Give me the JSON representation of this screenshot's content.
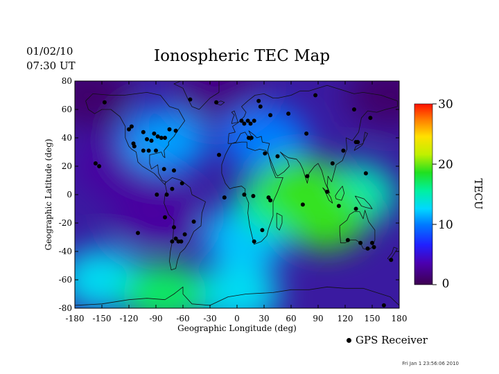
{
  "header": {
    "date": "01/02/10",
    "time": "07:30 UT",
    "title": "Ionospheric TEC Map",
    "timestamp": "Fri Jan  1 23:56:06 2010"
  },
  "legend": {
    "marker_label": "GPS Receiver"
  },
  "colorbar": {
    "label": "TECU",
    "ticks": [
      0,
      10,
      20,
      30
    ],
    "range": [
      0,
      30
    ]
  },
  "chart_data": {
    "type": "heatmap",
    "title": "Ionospheric TEC Map",
    "xlabel": "Geographic Longitude (deg)",
    "ylabel": "Geographic Latitude (deg)",
    "xlim": [
      -180,
      180
    ],
    "ylim": [
      -80,
      80
    ],
    "xticks": [
      -180,
      -150,
      -120,
      -90,
      -60,
      -30,
      0,
      30,
      60,
      90,
      120,
      150,
      180
    ],
    "yticks": [
      80,
      60,
      40,
      20,
      0,
      -20,
      -40,
      -60,
      -80
    ],
    "value_unit": "TECU",
    "value_range": [
      0,
      30
    ],
    "tec_features": [
      {
        "lon": 70,
        "lat": 5,
        "tec": 19
      },
      {
        "lon": 98,
        "lat": -17,
        "tec": 19
      },
      {
        "lon": 45,
        "lat": -5,
        "tec": 16
      },
      {
        "lon": 130,
        "lat": 0,
        "tec": 15
      },
      {
        "lon": 10,
        "lat": -30,
        "tec": 12
      },
      {
        "lon": 30,
        "lat": 40,
        "tec": 10
      },
      {
        "lon": -80,
        "lat": -70,
        "tec": 17
      },
      {
        "lon": -150,
        "lat": -60,
        "tec": 13
      },
      {
        "lon": 0,
        "lat": -70,
        "tec": 13
      },
      {
        "lon": -80,
        "lat": 38,
        "tec": 11
      },
      {
        "lon": -130,
        "lat": 20,
        "tec": 3
      },
      {
        "lon": -90,
        "lat": -15,
        "tec": 3
      },
      {
        "lon": -165,
        "lat": 70,
        "tec": 1
      },
      {
        "lon": 170,
        "lat": 70,
        "tec": 1
      },
      {
        "lon": -20,
        "lat": 75,
        "tec": 2
      }
    ],
    "gps_receivers": [
      [
        -147,
        65
      ],
      [
        -117,
        48
      ],
      [
        -120,
        46
      ],
      [
        -114,
        34
      ],
      [
        -115,
        36
      ],
      [
        -104,
        44
      ],
      [
        -95,
        38
      ],
      [
        -92,
        43
      ],
      [
        -88,
        41
      ],
      [
        -84,
        40
      ],
      [
        -80,
        40
      ],
      [
        -75,
        46
      ],
      [
        -68,
        45
      ],
      [
        -100,
        39
      ],
      [
        -98,
        31
      ],
      [
        -90,
        31
      ],
      [
        -81,
        18
      ],
      [
        -157,
        22
      ],
      [
        -153,
        20
      ],
      [
        -104,
        31
      ],
      [
        -70,
        17
      ],
      [
        -89,
        0
      ],
      [
        -78,
        0
      ],
      [
        -72,
        4
      ],
      [
        -61,
        8
      ],
      [
        -80,
        -16
      ],
      [
        -70,
        -23
      ],
      [
        -72,
        -33
      ],
      [
        -68,
        -31
      ],
      [
        -65,
        -33
      ],
      [
        -62,
        -33
      ],
      [
        -58,
        -28
      ],
      [
        -48,
        -19
      ],
      [
        -110,
        -27
      ],
      [
        -52,
        67
      ],
      [
        13,
        40
      ],
      [
        16,
        40
      ],
      [
        5,
        52
      ],
      [
        8,
        50
      ],
      [
        12,
        52
      ],
      [
        19,
        52
      ],
      [
        15,
        50
      ],
      [
        26,
        62
      ],
      [
        24,
        66
      ],
      [
        37,
        56
      ],
      [
        57,
        57
      ],
      [
        77,
        43
      ],
      [
        87,
        70
      ],
      [
        130,
        60
      ],
      [
        148,
        54
      ],
      [
        132,
        37
      ],
      [
        134,
        37
      ],
      [
        118,
        31
      ],
      [
        106,
        22
      ],
      [
        143,
        15
      ],
      [
        78,
        13
      ],
      [
        31,
        29
      ],
      [
        45,
        27
      ],
      [
        8,
        0
      ],
      [
        18,
        -1
      ],
      [
        35,
        -2
      ],
      [
        37,
        -4
      ],
      [
        73,
        -7
      ],
      [
        100,
        2
      ],
      [
        113,
        -8
      ],
      [
        132,
        -10
      ],
      [
        123,
        -32
      ],
      [
        137,
        -34
      ],
      [
        145,
        -38
      ],
      [
        150,
        -34
      ],
      [
        152,
        -37
      ],
      [
        171,
        -46
      ],
      [
        28,
        -25
      ],
      [
        19,
        -33
      ],
      [
        -14,
        -2
      ],
      [
        -20,
        28
      ],
      [
        -23,
        65
      ],
      [
        163,
        -78
      ]
    ]
  }
}
